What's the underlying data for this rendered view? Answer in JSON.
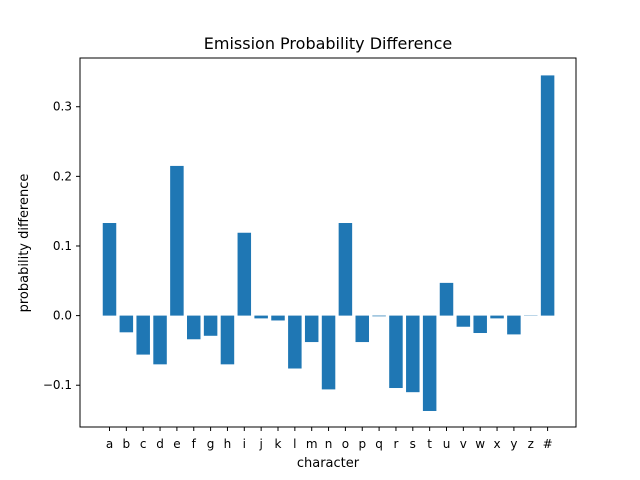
{
  "chart_data": {
    "type": "bar",
    "title": "Emission Probability Difference",
    "xlabel": "character",
    "ylabel": "probability difference",
    "categories": [
      "a",
      "b",
      "c",
      "d",
      "e",
      "f",
      "g",
      "h",
      "i",
      "j",
      "k",
      "l",
      "m",
      "n",
      "o",
      "p",
      "q",
      "r",
      "s",
      "t",
      "u",
      "v",
      "w",
      "x",
      "y",
      "z",
      "#"
    ],
    "values": [
      0.133,
      -0.024,
      -0.056,
      -0.07,
      0.215,
      -0.034,
      -0.029,
      -0.07,
      0.119,
      -0.004,
      -0.007,
      -0.076,
      -0.038,
      -0.106,
      0.133,
      -0.038,
      -0.001,
      -0.104,
      -0.11,
      -0.137,
      0.047,
      -0.016,
      -0.025,
      -0.004,
      -0.027,
      0.0,
      0.345
    ],
    "ylim": [
      -0.16,
      0.37
    ],
    "yticks": [
      -0.1,
      0.0,
      0.1,
      0.2,
      0.3
    ],
    "ytick_labels": [
      "−0.1",
      "0.0",
      "0.1",
      "0.2",
      "0.3"
    ],
    "bar_color": "#1f77b4",
    "grid": false,
    "legend": "none"
  }
}
